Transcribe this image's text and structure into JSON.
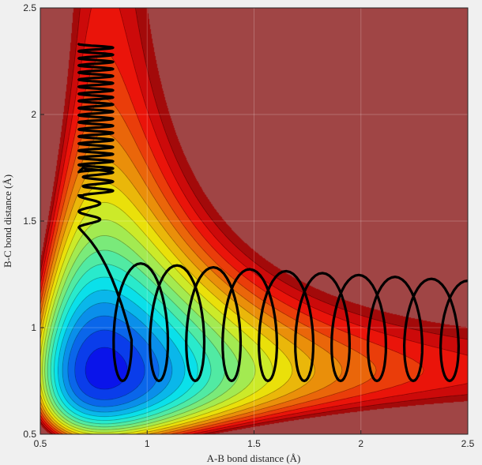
{
  "chart_data": {
    "type": "contour",
    "xlabel": "A-B bond distance (Å)",
    "ylabel": "B-C bond distance (Å)",
    "xlim": [
      0.5,
      2.5
    ],
    "ylim": [
      0.5,
      2.5
    ],
    "xticks": [
      0.5,
      1,
      1.5,
      2,
      2.5
    ],
    "yticks": [
      0.5,
      1,
      1.5,
      2,
      2.5
    ],
    "xtick_labels": [
      "0.5",
      "1",
      "1.5",
      "2",
      "2.5"
    ],
    "ytick_labels": [
      "0.5",
      "1",
      "1.5",
      "2",
      "2.5"
    ],
    "grid": true,
    "colormap": "jet",
    "potential_surface": {
      "well_depth": 1,
      "equilibrium_bond_length": 0.8,
      "morse_a": 1.9,
      "coupling": 0.12,
      "plateau": 0.2,
      "zmin": -1.05,
      "zmax": 0.05,
      "clip_color": "#a04545"
    },
    "trajectory": {
      "segments": [
        {
          "x": [
            0.68,
            0.84
          ],
          "y": [
            2.33,
            1.73
          ],
          "oscillations": 18
        },
        {
          "x": [
            0.7,
            0.84
          ],
          "y": [
            1.75,
            1.62
          ],
          "oscillations": 3
        },
        {
          "x": [
            0.68,
            0.78
          ],
          "y": [
            1.62,
            1.47
          ],
          "oscillations": 2
        }
      ],
      "reactive": {
        "x_start": 0.8,
        "x_end": 2.5,
        "y_min": 0.75,
        "y_max": 1.31,
        "y_final_max": 1.22,
        "oscillations": 10
      },
      "color": "#000000",
      "width": 3.2
    }
  }
}
